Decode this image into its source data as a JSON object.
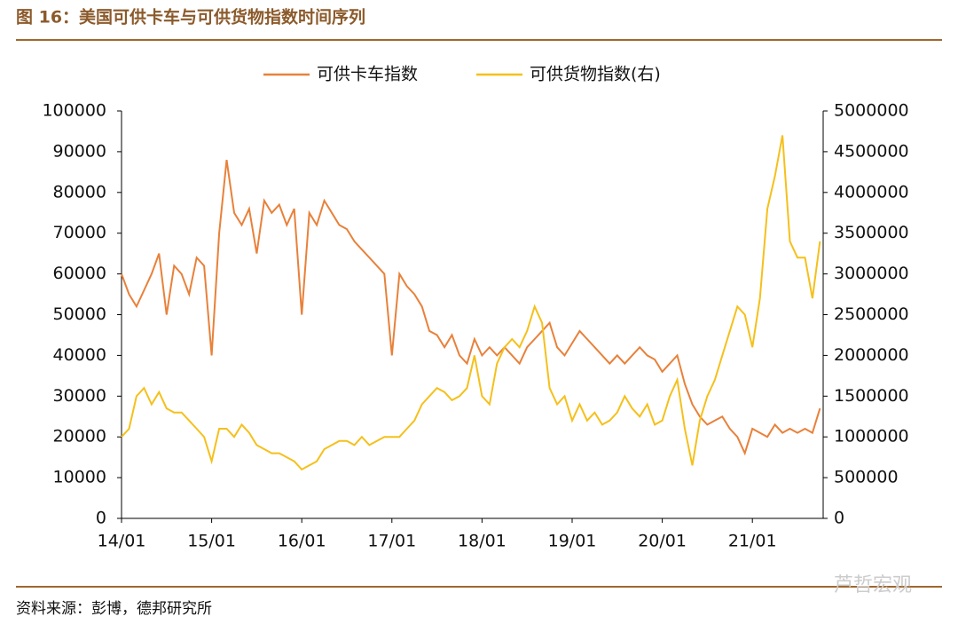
{
  "chart_data": {
    "type": "line",
    "title": "图 16：美国可供卡车与可供货物指数时间序列",
    "source": "资料来源：彭博，德邦研究所",
    "watermark": "芦哲宏观",
    "categories": [
      "14/01",
      null,
      null,
      null,
      null,
      null,
      null,
      null,
      null,
      null,
      null,
      null,
      "15/01",
      null,
      null,
      null,
      null,
      null,
      null,
      null,
      null,
      null,
      null,
      null,
      "16/01",
      null,
      null,
      null,
      null,
      null,
      null,
      null,
      null,
      null,
      null,
      null,
      "17/01",
      null,
      null,
      null,
      null,
      null,
      null,
      null,
      null,
      null,
      null,
      null,
      "18/01",
      null,
      null,
      null,
      null,
      null,
      null,
      null,
      null,
      null,
      null,
      null,
      "19/01",
      null,
      null,
      null,
      null,
      null,
      null,
      null,
      null,
      null,
      null,
      null,
      "20/01",
      null,
      null,
      null,
      null,
      null,
      null,
      null,
      null,
      null,
      null,
      null,
      "21/01",
      null,
      null,
      null,
      null,
      null,
      null,
      null,
      null,
      null
    ],
    "series": [
      {
        "name": "可供卡车指数",
        "color": "#e8813a",
        "axis": "y",
        "values": [
          60000,
          55000,
          52000,
          56000,
          60000,
          65000,
          50000,
          62000,
          60000,
          55000,
          64000,
          62000,
          40000,
          70000,
          88000,
          75000,
          72000,
          76000,
          65000,
          78000,
          75000,
          77000,
          72000,
          76000,
          50000,
          75000,
          72000,
          78000,
          75000,
          72000,
          71000,
          68000,
          66000,
          64000,
          62000,
          60000,
          40000,
          60000,
          57000,
          55000,
          52000,
          46000,
          45000,
          42000,
          45000,
          40000,
          38000,
          44000,
          40000,
          42000,
          40000,
          42000,
          40000,
          38000,
          42000,
          44000,
          46000,
          48000,
          42000,
          40000,
          43000,
          46000,
          44000,
          42000,
          40000,
          38000,
          40000,
          38000,
          40000,
          42000,
          40000,
          39000,
          36000,
          38000,
          40000,
          33000,
          28000,
          25000,
          23000,
          24000,
          25000,
          22000,
          20000,
          16000,
          22000,
          21000,
          20000,
          23000,
          21000,
          22000,
          21000,
          22000,
          21000,
          27000
        ]
      },
      {
        "name": "可供货物指数(右)",
        "color": "#f5c01b",
        "axis": "y2",
        "values": [
          1000000,
          1100000,
          1500000,
          1600000,
          1400000,
          1550000,
          1350000,
          1300000,
          1300000,
          1200000,
          1100000,
          1000000,
          700000,
          1100000,
          1100000,
          1000000,
          1150000,
          1050000,
          900000,
          850000,
          800000,
          800000,
          750000,
          700000,
          600000,
          650000,
          700000,
          850000,
          900000,
          950000,
          950000,
          900000,
          1000000,
          900000,
          950000,
          1000000,
          1000000,
          1000000,
          1100000,
          1200000,
          1400000,
          1500000,
          1600000,
          1550000,
          1450000,
          1500000,
          1600000,
          2000000,
          1500000,
          1400000,
          1900000,
          2100000,
          2200000,
          2100000,
          2300000,
          2600000,
          2400000,
          1600000,
          1400000,
          1500000,
          1200000,
          1400000,
          1200000,
          1300000,
          1150000,
          1200000,
          1300000,
          1500000,
          1350000,
          1250000,
          1400000,
          1150000,
          1200000,
          1500000,
          1700000,
          1100000,
          650000,
          1200000,
          1500000,
          1700000,
          2000000,
          2300000,
          2600000,
          2500000,
          2100000,
          2700000,
          3800000,
          4200000,
          4700000,
          3400000,
          3200000,
          3200000,
          2700000,
          3400000
        ]
      }
    ],
    "ylim": [
      0,
      100000
    ],
    "yticks": [
      0,
      10000,
      20000,
      30000,
      40000,
      50000,
      60000,
      70000,
      80000,
      90000,
      100000
    ],
    "y2lim": [
      0,
      5000000
    ],
    "y2ticks": [
      0,
      500000,
      1000000,
      1500000,
      2000000,
      2500000,
      3000000,
      3500000,
      4000000,
      4500000,
      5000000
    ],
    "legend": "top"
  }
}
